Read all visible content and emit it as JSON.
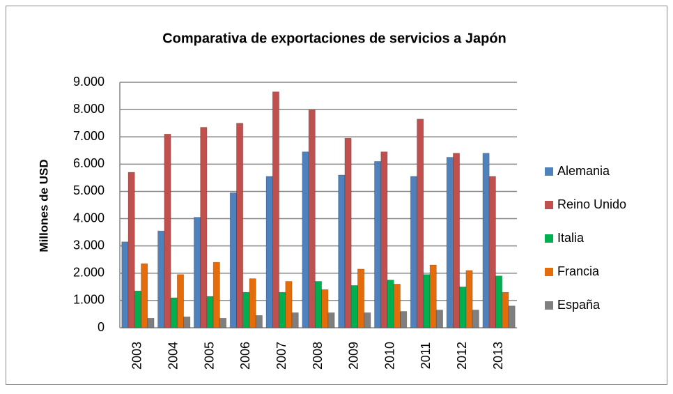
{
  "chart_data": {
    "type": "bar",
    "title": "Comparativa de exportaciones de servicios a Japón",
    "y_label": "Millones de USD",
    "categories": [
      "2003",
      "2004",
      "2005",
      "2006",
      "2007",
      "2008",
      "2009",
      "2010",
      "2011",
      "2012",
      "2013"
    ],
    "series": [
      {
        "name": "Alemania",
        "color": "#4f81bd",
        "values": [
          3150,
          3550,
          4050,
          4950,
          5550,
          6450,
          5600,
          6100,
          5550,
          6250,
          6400
        ]
      },
      {
        "name": "Reino Unido",
        "color": "#c0504d",
        "values": [
          5700,
          7100,
          7350,
          7500,
          8650,
          8000,
          6950,
          6450,
          7650,
          6400,
          5550
        ]
      },
      {
        "name": "Italia",
        "color": "#00b050",
        "values": [
          1350,
          1100,
          1150,
          1300,
          1300,
          1700,
          1550,
          1750,
          1950,
          1500,
          1900
        ]
      },
      {
        "name": "Francia",
        "color": "#e46c0a",
        "values": [
          2350,
          1950,
          2400,
          1800,
          1700,
          1400,
          2150,
          1600,
          2300,
          2100,
          1300
        ]
      },
      {
        "name": "España",
        "color": "#7f7f7f",
        "values": [
          350,
          400,
          350,
          450,
          550,
          550,
          550,
          600,
          650,
          650,
          800
        ]
      }
    ],
    "ylim": [
      0,
      9000
    ],
    "yticks": [
      0,
      {
        "value": 1000,
        "label": "1.000"
      },
      {
        "value": 2000,
        "label": "2.000"
      },
      {
        "value": 3000,
        "label": "3.000"
      },
      {
        "value": 4000,
        "label": "4.000"
      },
      {
        "value": 5000,
        "label": "5.000"
      },
      {
        "value": 6000,
        "label": "6.000"
      },
      {
        "value": 7000,
        "label": "7.000"
      },
      {
        "value": 8000,
        "label": "8.000"
      },
      {
        "value": 9000,
        "label": "9.000"
      }
    ],
    "grid": true,
    "legend": "right"
  }
}
